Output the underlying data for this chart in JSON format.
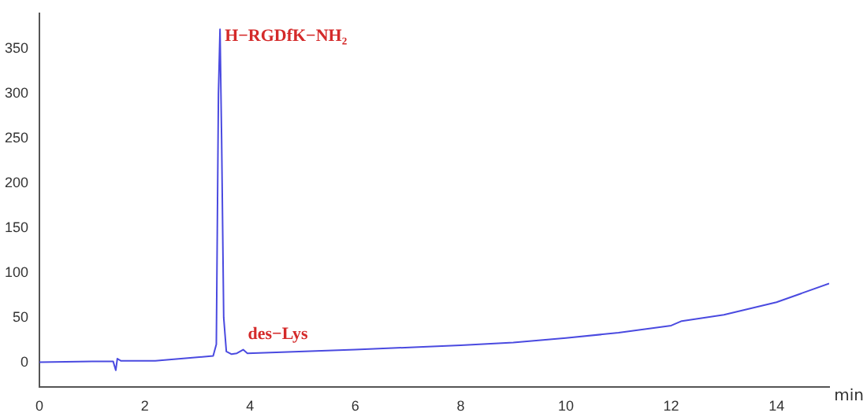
{
  "chart_data": {
    "type": "line",
    "xlabel": "min",
    "color": "#4a4ae0",
    "grid": false,
    "legend": false,
    "marker": "none",
    "line_style": "solid",
    "x": [
      0,
      1,
      1.4,
      1.45,
      1.48,
      1.55,
      2.2,
      3.3,
      3.36,
      3.4,
      3.43,
      3.46,
      3.5,
      3.55,
      3.65,
      3.75,
      3.87,
      3.95,
      4.5,
      6,
      7.2,
      8,
      9,
      10,
      11,
      12,
      12.2,
      13,
      14,
      15
    ],
    "values": [
      0,
      1,
      1,
      -9,
      4,
      1.5,
      1.5,
      7,
      20,
      300,
      372,
      250,
      50,
      12,
      9,
      10,
      14,
      10,
      11,
      14,
      17,
      19,
      22,
      27,
      33,
      41,
      46,
      53,
      67,
      88
    ],
    "xlim": [
      0,
      15
    ],
    "xticks": [
      0,
      2,
      4,
      6,
      8,
      10,
      12,
      14
    ],
    "ylim": [
      -28,
      390
    ],
    "yticks": [
      0,
      50,
      100,
      150,
      200,
      250,
      300,
      350
    ],
    "annotations": [
      {
        "text": "H−RGDfK−NH₂",
        "x": 3.43,
        "y": 372
      },
      {
        "text": "des−Lys",
        "x": 3.87,
        "y": 14
      }
    ]
  }
}
